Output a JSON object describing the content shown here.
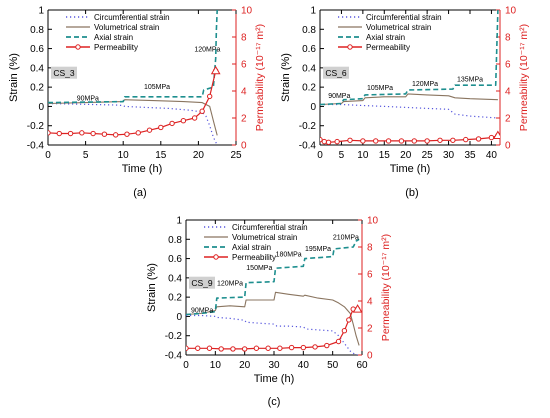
{
  "chart_data": [
    {
      "type": "line",
      "panel_label": "(a)",
      "sample_label": "CS_3",
      "xlabel": "Time (h)",
      "ylabel_left": "Strain (%)",
      "ylabel_right": "Permeability (10⁻¹⁷ m²)",
      "xlim": [
        0,
        25
      ],
      "xticks": [
        0,
        5,
        10,
        15,
        20,
        25
      ],
      "ylim_left": [
        -0.4,
        1.0
      ],
      "yticks_left": [
        -0.4,
        -0.2,
        0.0,
        0.2,
        0.4,
        0.6,
        0.8,
        1.0
      ],
      "ylim_right": [
        0,
        10
      ],
      "yticks_right": [
        0,
        2,
        4,
        6,
        8,
        10
      ],
      "legend": [
        "Circumferential strain",
        "Volumetrical strain",
        "Axial strain",
        "Permeability"
      ],
      "annotations": [
        {
          "text": "90MPa",
          "x": 5.3,
          "y": 0.06
        },
        {
          "text": "105MPa",
          "x": 14.5,
          "y": 0.18
        },
        {
          "text": "120MPa",
          "x": 21.2,
          "y": 0.57
        }
      ],
      "series": [
        {
          "name": "Circumferential strain",
          "axis": "left",
          "x": [
            0,
            3,
            6,
            9,
            10,
            10.2,
            13,
            16,
            19,
            20.5,
            21,
            21.5,
            22,
            22.5
          ],
          "y": [
            0.03,
            0.025,
            0.02,
            0.015,
            0.01,
            0.0,
            -0.01,
            -0.02,
            -0.04,
            -0.06,
            -0.1,
            -0.2,
            -0.32,
            -0.4
          ]
        },
        {
          "name": "Volumetrical strain",
          "axis": "left",
          "x": [
            0,
            5,
            10,
            10.2,
            14,
            18,
            20.5,
            21.5,
            22,
            22.5
          ],
          "y": [
            0.03,
            0.04,
            0.05,
            0.07,
            0.06,
            0.05,
            0.04,
            0.0,
            -0.15,
            -0.3
          ]
        },
        {
          "name": "Axial strain",
          "axis": "left",
          "x": [
            0,
            5,
            10,
            10.2,
            15,
            20.5,
            20.7,
            22,
            22.3,
            22.4,
            22.5,
            22.6
          ],
          "y": [
            0.04,
            0.045,
            0.05,
            0.1,
            0.1,
            0.1,
            0.17,
            0.2,
            0.5,
            0.8,
            1.0,
            1.0
          ]
        },
        {
          "name": "Permeability",
          "axis": "right",
          "x": [
            0,
            1.5,
            3,
            4.5,
            6,
            7.5,
            9,
            10.5,
            12,
            13.5,
            15,
            16.5,
            18,
            19.5,
            20.5,
            21.5,
            22.3
          ],
          "y": [
            0.9,
            0.85,
            0.85,
            0.9,
            0.85,
            0.8,
            0.75,
            0.8,
            0.9,
            1.1,
            1.3,
            1.6,
            1.8,
            2.0,
            2.5,
            3.6,
            5.5
          ]
        }
      ]
    },
    {
      "type": "line",
      "panel_label": "(b)",
      "sample_label": "CS_6",
      "xlabel": "Time (h)",
      "ylabel_left": "Strain (%)",
      "ylabel_right": "Permeability (10⁻¹⁷ m²)",
      "xlim": [
        0,
        42
      ],
      "xticks": [
        0,
        5,
        10,
        15,
        20,
        25,
        30,
        35,
        40
      ],
      "ylim_left": [
        -0.4,
        1.0
      ],
      "yticks_left": [
        -0.4,
        -0.2,
        0.0,
        0.2,
        0.4,
        0.6,
        0.8,
        1.0
      ],
      "ylim_right": [
        0,
        10
      ],
      "yticks_right": [
        0,
        2,
        4,
        6,
        8,
        10
      ],
      "legend": [
        "Circumferential strain",
        "Volumetrical strain",
        "Axial strain",
        "Permeability"
      ],
      "annotations": [
        {
          "text": "90MPa",
          "x": 4.5,
          "y": 0.09
        },
        {
          "text": "105MPa",
          "x": 14,
          "y": 0.17
        },
        {
          "text": "120MPa",
          "x": 24.5,
          "y": 0.21
        },
        {
          "text": "135MPa",
          "x": 35,
          "y": 0.26
        }
      ],
      "series": [
        {
          "name": "Circumferential strain",
          "axis": "left",
          "x": [
            0,
            5,
            10,
            15,
            20,
            25,
            30,
            31.5,
            35,
            41.5
          ],
          "y": [
            0.02,
            0.02,
            0.01,
            0.0,
            -0.01,
            -0.02,
            -0.03,
            -0.08,
            -0.1,
            -0.12
          ]
        },
        {
          "name": "Volumetrical strain",
          "axis": "left",
          "x": [
            0,
            5,
            5.5,
            10,
            10.5,
            15,
            20,
            20.5,
            25,
            30,
            31.5,
            35,
            41.5
          ],
          "y": [
            0.02,
            0.03,
            0.05,
            0.06,
            0.09,
            0.1,
            0.1,
            0.13,
            0.12,
            0.11,
            0.09,
            0.08,
            0.07
          ]
        },
        {
          "name": "Axial strain",
          "axis": "left",
          "x": [
            0,
            5,
            5.5,
            10,
            10.5,
            20,
            20.5,
            31,
            31.5,
            41,
            41.5
          ],
          "y": [
            0.02,
            0.03,
            0.07,
            0.08,
            0.12,
            0.13,
            0.17,
            0.18,
            0.22,
            0.22,
            1.0
          ]
        },
        {
          "name": "Permeability",
          "axis": "right",
          "x": [
            0,
            1,
            2,
            4,
            7,
            10,
            13,
            16,
            19,
            22,
            25,
            28,
            31,
            34,
            37,
            40,
            41.5
          ],
          "y": [
            0.4,
            0.25,
            0.2,
            0.25,
            0.35,
            0.3,
            0.3,
            0.3,
            0.3,
            0.3,
            0.3,
            0.35,
            0.35,
            0.4,
            0.45,
            0.55,
            0.7
          ]
        }
      ]
    },
    {
      "type": "line",
      "panel_label": "(c)",
      "sample_label": "CS_9",
      "xlabel": "Time (h)",
      "ylabel_left": "Strain (%)",
      "ylabel_right": "Permeability (10⁻¹⁷ m²)",
      "xlim": [
        0,
        60
      ],
      "xticks": [
        0,
        10,
        20,
        30,
        40,
        50,
        60
      ],
      "ylim_left": [
        -0.4,
        1.0
      ],
      "yticks_left": [
        -0.4,
        -0.2,
        0.0,
        0.2,
        0.4,
        0.6,
        0.8,
        1.0
      ],
      "ylim_right": [
        0,
        10
      ],
      "yticks_right": [
        0,
        2,
        4,
        6,
        8,
        10
      ],
      "legend": [
        "Circumferential strain",
        "Volumetrical strain",
        "Axial strain",
        "Permeability"
      ],
      "annotations": [
        {
          "text": "90MPa",
          "x": 5.5,
          "y": 0.04
        },
        {
          "text": "120MPa",
          "x": 15,
          "y": 0.32
        },
        {
          "text": "150MPa",
          "x": 25,
          "y": 0.48
        },
        {
          "text": "180MPa",
          "x": 35,
          "y": 0.62
        },
        {
          "text": "195MPa",
          "x": 45,
          "y": 0.68
        },
        {
          "text": "210MPa",
          "x": 54.5,
          "y": 0.8
        }
      ],
      "series": [
        {
          "name": "Circumferential strain",
          "axis": "left",
          "x": [
            0,
            5,
            10,
            10.5,
            15,
            20,
            20.5,
            25,
            30,
            31,
            35,
            40,
            41,
            45,
            50,
            52,
            54,
            56,
            58,
            59
          ],
          "y": [
            0.01,
            0.01,
            0.0,
            -0.01,
            -0.02,
            -0.04,
            -0.06,
            -0.07,
            -0.08,
            -0.1,
            -0.1,
            -0.11,
            -0.13,
            -0.14,
            -0.15,
            -0.2,
            -0.28,
            -0.36,
            -0.4,
            -0.4
          ]
        },
        {
          "name": "Volumetrical strain",
          "axis": "left",
          "x": [
            0,
            5,
            10,
            10.5,
            15,
            20,
            20.5,
            25,
            30,
            30.5,
            35,
            40,
            40.5,
            45,
            50,
            52,
            54,
            56,
            57,
            58,
            59
          ],
          "y": [
            0.02,
            0.03,
            0.06,
            0.1,
            0.11,
            0.1,
            0.17,
            0.17,
            0.17,
            0.25,
            0.23,
            0.21,
            0.22,
            0.19,
            0.17,
            0.14,
            0.1,
            0.03,
            -0.08,
            -0.2,
            -0.3
          ]
        },
        {
          "name": "Axial strain",
          "axis": "left",
          "x": [
            0,
            5,
            10,
            10.5,
            20,
            20.5,
            30,
            30.5,
            40,
            40.5,
            50,
            50.5,
            57,
            58,
            59
          ],
          "y": [
            0.02,
            0.03,
            0.05,
            0.19,
            0.2,
            0.35,
            0.36,
            0.5,
            0.52,
            0.6,
            0.62,
            0.7,
            0.72,
            0.78,
            0.8
          ]
        },
        {
          "name": "Permeability",
          "axis": "right",
          "x": [
            0,
            4,
            8,
            12,
            16,
            20,
            24,
            28,
            32,
            36,
            40,
            44,
            48,
            52,
            54,
            55.5,
            57,
            58.5
          ],
          "y": [
            0.5,
            0.5,
            0.5,
            0.45,
            0.45,
            0.45,
            0.5,
            0.5,
            0.5,
            0.55,
            0.55,
            0.6,
            0.7,
            1.0,
            1.8,
            2.6,
            3.4,
            3.4
          ]
        }
      ]
    }
  ],
  "colors": {
    "circumferential": "#5555dd",
    "volumetrical": "#8a7560",
    "axial": "#1e8f8f",
    "permeability": "#dd2222",
    "axis": "#000000",
    "right_axis": "#dd2222",
    "sample_box": "#d0d0d0"
  }
}
